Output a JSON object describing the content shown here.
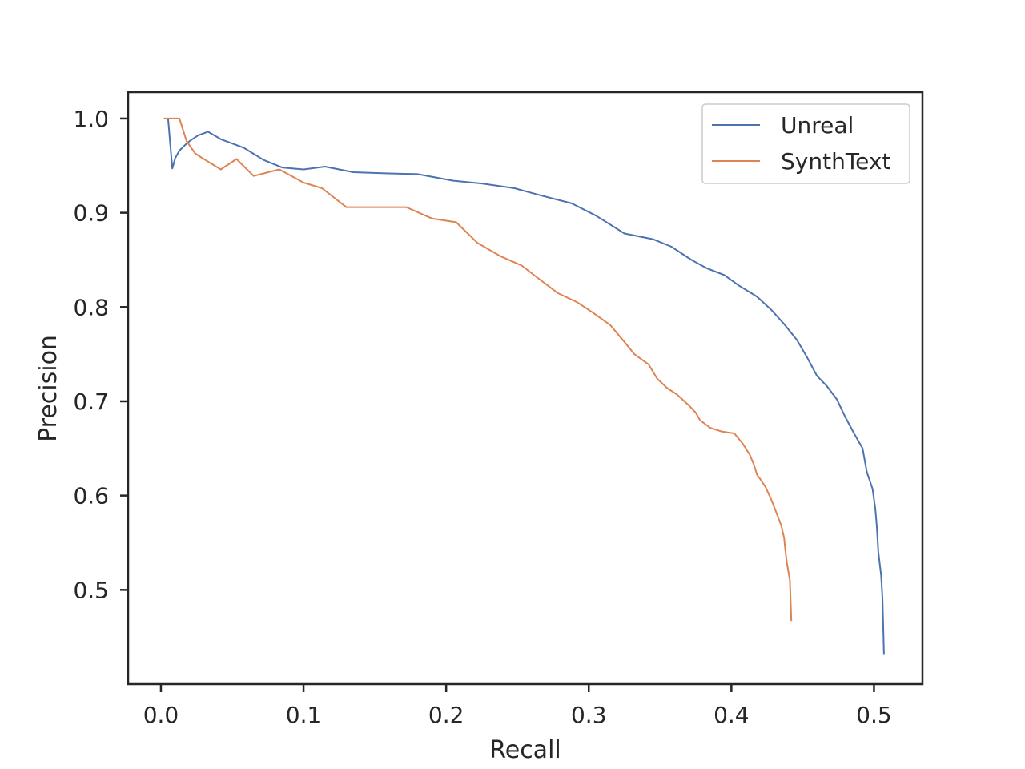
{
  "chart_data": {
    "type": "line",
    "title": "",
    "xlabel": "Recall",
    "ylabel": "Precision",
    "xlim": [
      -0.023,
      0.534
    ],
    "ylim": [
      0.4,
      1.028
    ],
    "xticks": [
      0.0,
      0.1,
      0.2,
      0.3,
      0.4,
      0.5
    ],
    "yticks": [
      0.5,
      0.6,
      0.7,
      0.8,
      0.9,
      1.0
    ],
    "grid": false,
    "legend": "top-right",
    "series": [
      {
        "name": "Unreal",
        "color": "#4c72b0",
        "x": [
          0.005,
          0.008,
          0.01,
          0.013,
          0.017,
          0.02,
          0.026,
          0.033,
          0.042,
          0.058,
          0.072,
          0.085,
          0.1,
          0.115,
          0.135,
          0.155,
          0.18,
          0.205,
          0.225,
          0.248,
          0.265,
          0.288,
          0.305,
          0.325,
          0.345,
          0.358,
          0.372,
          0.383,
          0.395,
          0.405,
          0.418,
          0.428,
          0.437,
          0.446,
          0.453,
          0.46,
          0.467,
          0.474,
          0.48,
          0.486,
          0.492,
          0.495,
          0.499,
          0.501,
          0.502,
          0.503,
          0.505,
          0.506,
          0.507
        ],
        "y": [
          1.0,
          0.947,
          0.958,
          0.966,
          0.972,
          0.976,
          0.982,
          0.986,
          0.978,
          0.969,
          0.956,
          0.948,
          0.946,
          0.949,
          0.943,
          0.942,
          0.941,
          0.934,
          0.931,
          0.926,
          0.919,
          0.91,
          0.897,
          0.878,
          0.872,
          0.864,
          0.85,
          0.841,
          0.834,
          0.823,
          0.811,
          0.797,
          0.782,
          0.765,
          0.747,
          0.727,
          0.716,
          0.702,
          0.683,
          0.666,
          0.65,
          0.625,
          0.607,
          0.585,
          0.567,
          0.541,
          0.515,
          0.49,
          0.431
        ]
      },
      {
        "name": "SynthText",
        "color": "#dd8452",
        "x": [
          0.002,
          0.008,
          0.013,
          0.018,
          0.024,
          0.03,
          0.042,
          0.053,
          0.065,
          0.083,
          0.1,
          0.113,
          0.13,
          0.15,
          0.172,
          0.19,
          0.207,
          0.222,
          0.238,
          0.253,
          0.265,
          0.278,
          0.292,
          0.303,
          0.315,
          0.325,
          0.332,
          0.342,
          0.348,
          0.355,
          0.362,
          0.37,
          0.375,
          0.378,
          0.385,
          0.393,
          0.402,
          0.408,
          0.413,
          0.416,
          0.418,
          0.42,
          0.424,
          0.427,
          0.43,
          0.432,
          0.435,
          0.437,
          0.438,
          0.439,
          0.441,
          0.442
        ],
        "y": [
          1.0,
          1.0,
          1.0,
          0.976,
          0.963,
          0.957,
          0.946,
          0.957,
          0.939,
          0.946,
          0.932,
          0.926,
          0.906,
          0.906,
          0.906,
          0.894,
          0.89,
          0.868,
          0.854,
          0.844,
          0.83,
          0.815,
          0.805,
          0.794,
          0.781,
          0.763,
          0.75,
          0.739,
          0.724,
          0.714,
          0.707,
          0.696,
          0.688,
          0.68,
          0.672,
          0.668,
          0.666,
          0.655,
          0.643,
          0.632,
          0.622,
          0.618,
          0.609,
          0.599,
          0.588,
          0.58,
          0.568,
          0.555,
          0.54,
          0.528,
          0.51,
          0.467
        ]
      }
    ]
  }
}
